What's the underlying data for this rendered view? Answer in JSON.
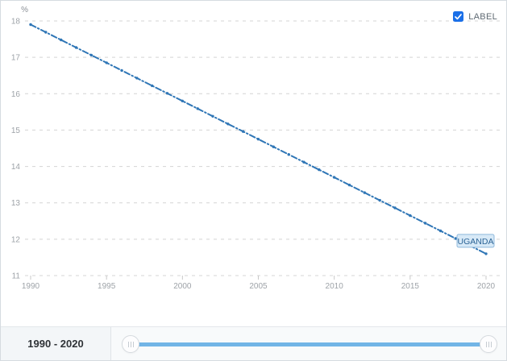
{
  "legend": {
    "label": "LABEL",
    "checked": true,
    "checkbox_color": "#1a6fe8"
  },
  "chart_data": {
    "type": "line",
    "title": "",
    "xlabel": "",
    "ylabel": "%",
    "unit_label": "%",
    "x": [
      1990,
      1991,
      1992,
      1993,
      1994,
      1995,
      1996,
      1997,
      1998,
      1999,
      2000,
      2001,
      2002,
      2003,
      2004,
      2005,
      2006,
      2007,
      2008,
      2009,
      2010,
      2011,
      2012,
      2013,
      2014,
      2015,
      2016,
      2017,
      2018,
      2019,
      2020
    ],
    "series": [
      {
        "name": "UGANDA",
        "values": [
          17.9,
          17.69,
          17.48,
          17.27,
          17.06,
          16.85,
          16.64,
          16.43,
          16.22,
          16.01,
          15.8,
          15.59,
          15.38,
          15.17,
          14.96,
          14.75,
          14.54,
          14.33,
          14.12,
          13.91,
          13.7,
          13.49,
          13.28,
          13.07,
          12.86,
          12.65,
          12.44,
          12.23,
          12.02,
          11.81,
          11.6
        ],
        "color": "#2f76b6",
        "dash_style": "dash-dot",
        "end_label": "UGANDA"
      }
    ],
    "ylim": [
      11,
      18
    ],
    "yticks": [
      11,
      12,
      13,
      14,
      15,
      16,
      17,
      18
    ],
    "xticks": [
      1990,
      1995,
      2000,
      2005,
      2010,
      2015,
      2020
    ],
    "grid": "horizontal-dashed",
    "legend_position": "top-right",
    "end_label_style": {
      "fill": "#d7e9f7",
      "border": "#8fb9dc",
      "text_color": "#2c6496"
    }
  },
  "range_bar": {
    "label": "1990 - 2020",
    "slider": {
      "min": 1990,
      "max": 2020,
      "from": 1990,
      "to": 2020,
      "track_color": "#72b5e6"
    }
  }
}
